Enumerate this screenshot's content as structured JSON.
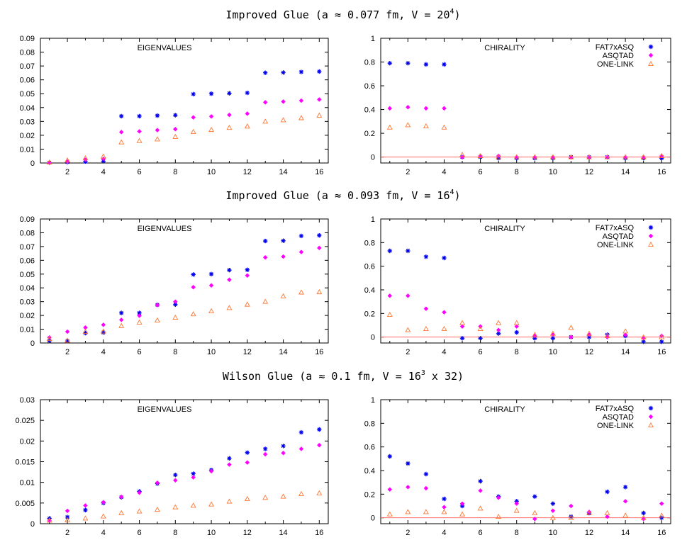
{
  "figure": {
    "sections": [
      {
        "title_main": "Improved Glue (a ≈ 0.077 fm, V = 20",
        "title_sup": "4",
        "title_end": ")"
      },
      {
        "title_main": "Improved Glue (a ≈ 0.093 fm, V = 16",
        "title_sup": "4",
        "title_end": ")"
      },
      {
        "title_main": "Wilson Glue (a ≈ 0.1 fm, V = 16",
        "title_sup": "3",
        "title_end": " x 32)"
      }
    ]
  },
  "colors": {
    "FAT7xASQ": "#0000ee",
    "ASQTAD": "#ff00ff",
    "ONE-LINK": "#ff7733",
    "zero_line": "#ff6666"
  },
  "chart_data": [
    {
      "type": "scatter",
      "title": "EIGENVALUES",
      "xlim": [
        0.5,
        16.5
      ],
      "ylim": [
        0,
        0.09
      ],
      "xticks": [
        "2",
        "4",
        "6",
        "8",
        "10",
        "12",
        "14",
        "16"
      ],
      "yticks": [
        "0",
        "0.01",
        "0.02",
        "0.03",
        "0.04",
        "0.05",
        "0.06",
        "0.07",
        "0.08",
        "0.09"
      ],
      "x": [
        1,
        2,
        3,
        4,
        5,
        6,
        7,
        8,
        9,
        10,
        11,
        12,
        13,
        14,
        15,
        16
      ],
      "series": [
        {
          "name": "FAT7xASQ",
          "marker": "asterisk",
          "values": [
            0.0003,
            0.0006,
            0.0011,
            0.0013,
            0.0338,
            0.0338,
            0.0342,
            0.0345,
            0.0497,
            0.05,
            0.0503,
            0.0506,
            0.0651,
            0.0653,
            0.0657,
            0.066
          ]
        },
        {
          "name": "ASQTAD",
          "marker": "diamond",
          "values": [
            0.0003,
            0.001,
            0.0024,
            0.003,
            0.0223,
            0.0228,
            0.0237,
            0.0244,
            0.0329,
            0.0336,
            0.0347,
            0.0356,
            0.0438,
            0.0443,
            0.045,
            0.0458
          ]
        },
        {
          "name": "ONE-LINK",
          "marker": "triangle",
          "values": [
            0.0005,
            0.002,
            0.0035,
            0.0048,
            0.015,
            0.016,
            0.0172,
            0.019,
            0.0225,
            0.024,
            0.0255,
            0.0265,
            0.03,
            0.031,
            0.0325,
            0.0343
          ]
        }
      ]
    },
    {
      "type": "scatter",
      "title": "CHIRALITY",
      "xlim": [
        0.5,
        16.5
      ],
      "ylim": [
        -0.05,
        1
      ],
      "xticks": [
        "2",
        "4",
        "6",
        "8",
        "10",
        "12",
        "14",
        "16"
      ],
      "yticks": [
        "0",
        "0.2",
        "0.4",
        "0.6",
        "0.8",
        "1"
      ],
      "legend": [
        "FAT7xASQ",
        "ASQTAD",
        "ONE-LINK"
      ],
      "x": [
        1,
        2,
        3,
        4,
        5,
        6,
        7,
        8,
        9,
        10,
        11,
        12,
        13,
        14,
        15,
        16
      ],
      "series": [
        {
          "name": "FAT7xASQ",
          "marker": "asterisk",
          "values": [
            0.79,
            0.79,
            0.78,
            0.78,
            0.0,
            0.0,
            -0.01,
            -0.01,
            -0.01,
            -0.01,
            0.0,
            0.0,
            0.0,
            -0.01,
            -0.01,
            -0.01
          ]
        },
        {
          "name": "ASQTAD",
          "marker": "diamond",
          "values": [
            0.41,
            0.42,
            0.41,
            0.41,
            0.0,
            0.01,
            0.01,
            0.0,
            0.0,
            0.0,
            0.0,
            0.0,
            0.0,
            0.0,
            0.0,
            0.01
          ]
        },
        {
          "name": "ONE-LINK",
          "marker": "triangle",
          "values": [
            0.25,
            0.27,
            0.26,
            0.25,
            0.02,
            0.01,
            0.0,
            0.0,
            0.0,
            0.0,
            0.0,
            0.0,
            0.0,
            0.0,
            0.0,
            0.01
          ]
        }
      ]
    },
    {
      "type": "scatter",
      "title": "EIGENVALUES",
      "xlim": [
        0.5,
        16.5
      ],
      "ylim": [
        0,
        0.09
      ],
      "xticks": [
        "2",
        "4",
        "6",
        "8",
        "10",
        "12",
        "14",
        "16"
      ],
      "yticks": [
        "0",
        "0.01",
        "0.02",
        "0.03",
        "0.04",
        "0.05",
        "0.06",
        "0.07",
        "0.08",
        "0.09"
      ],
      "x": [
        1,
        2,
        3,
        4,
        5,
        6,
        7,
        8,
        9,
        10,
        11,
        12,
        13,
        14,
        15,
        16
      ],
      "series": [
        {
          "name": "FAT7xASQ",
          "marker": "asterisk",
          "values": [
            0.0015,
            0.0015,
            0.0072,
            0.0076,
            0.0218,
            0.0218,
            0.0277,
            0.0279,
            0.0497,
            0.05,
            0.0529,
            0.0531,
            0.074,
            0.0742,
            0.0777,
            0.0781
          ]
        },
        {
          "name": "ASQTAD",
          "marker": "diamond",
          "values": [
            0.004,
            0.0082,
            0.0112,
            0.0132,
            0.0168,
            0.0198,
            0.0275,
            0.03,
            0.0405,
            0.0418,
            0.0459,
            0.049,
            0.0621,
            0.0627,
            0.066,
            0.069
          ]
        },
        {
          "name": "ONE-LINK",
          "marker": "triangle",
          "values": [
            0.003,
            0.0018,
            0.0082,
            0.0085,
            0.0125,
            0.015,
            0.0165,
            0.0185,
            0.021,
            0.0232,
            0.0255,
            0.028,
            0.03,
            0.034,
            0.0368,
            0.037
          ]
        }
      ]
    },
    {
      "type": "scatter",
      "title": "CHIRALITY",
      "xlim": [
        0.5,
        16.5
      ],
      "ylim": [
        -0.05,
        1
      ],
      "xticks": [
        "2",
        "4",
        "6",
        "8",
        "10",
        "12",
        "14",
        "16"
      ],
      "yticks": [
        "0",
        "0.2",
        "0.4",
        "0.6",
        "0.8",
        "1"
      ],
      "legend": [
        "FAT7xASQ",
        "ASQTAD",
        "ONE-LINK"
      ],
      "x": [
        1,
        2,
        3,
        4,
        5,
        6,
        7,
        8,
        9,
        10,
        11,
        12,
        13,
        14,
        15,
        16
      ],
      "series": [
        {
          "name": "FAT7xASQ",
          "marker": "asterisk",
          "values": [
            0.73,
            0.73,
            0.68,
            0.67,
            -0.01,
            -0.01,
            0.03,
            0.04,
            -0.01,
            -0.01,
            0.0,
            0.0,
            0.02,
            0.01,
            -0.04,
            -0.04
          ]
        },
        {
          "name": "ASQTAD",
          "marker": "diamond",
          "values": [
            0.35,
            0.35,
            0.24,
            0.21,
            0.09,
            0.09,
            0.06,
            0.09,
            0.01,
            0.02,
            0.0,
            0.02,
            0.0,
            0.02,
            -0.01,
            0.01
          ]
        },
        {
          "name": "ONE-LINK",
          "marker": "triangle",
          "values": [
            0.19,
            0.06,
            0.07,
            0.07,
            0.12,
            0.07,
            0.12,
            0.12,
            0.02,
            0.03,
            0.08,
            0.03,
            0.01,
            0.05,
            0.0,
            0.0
          ]
        }
      ]
    },
    {
      "type": "scatter",
      "title": "EIGENVALUES",
      "xlim": [
        0.5,
        16.5
      ],
      "ylim": [
        0,
        0.03
      ],
      "xticks": [
        "2",
        "4",
        "6",
        "8",
        "10",
        "12",
        "14",
        "16"
      ],
      "yticks": [
        "0",
        "0.005",
        "0.01",
        "0.015",
        "0.02",
        "0.025",
        "0.03"
      ],
      "x": [
        1,
        2,
        3,
        4,
        5,
        6,
        7,
        8,
        9,
        10,
        11,
        12,
        13,
        14,
        15,
        16
      ],
      "series": [
        {
          "name": "FAT7xASQ",
          "marker": "asterisk",
          "values": [
            0.0013,
            0.0016,
            0.0033,
            0.005,
            0.0064,
            0.0078,
            0.0097,
            0.0118,
            0.0121,
            0.013,
            0.0158,
            0.0172,
            0.0181,
            0.0188,
            0.0221,
            0.0228
          ]
        },
        {
          "name": "ASQTAD",
          "marker": "diamond",
          "values": [
            0.0008,
            0.0031,
            0.0044,
            0.0052,
            0.0065,
            0.0075,
            0.0099,
            0.0105,
            0.0112,
            0.0127,
            0.0143,
            0.0148,
            0.0168,
            0.0171,
            0.0181,
            0.019
          ]
        },
        {
          "name": "ONE-LINK",
          "marker": "triangle",
          "values": [
            0.0008,
            0.0009,
            0.0013,
            0.0018,
            0.0026,
            0.003,
            0.0034,
            0.004,
            0.0044,
            0.0047,
            0.0054,
            0.006,
            0.0063,
            0.0066,
            0.0072,
            0.0074
          ]
        }
      ]
    },
    {
      "type": "scatter",
      "title": "CHIRALITY",
      "xlim": [
        0.5,
        16.5
      ],
      "ylim": [
        -0.05,
        1
      ],
      "xticks": [
        "2",
        "4",
        "6",
        "8",
        "10",
        "12",
        "14",
        "16"
      ],
      "yticks": [
        "0",
        "0.2",
        "0.4",
        "0.6",
        "0.8",
        "1"
      ],
      "legend": [
        "FAT7xASQ",
        "ASQTAD",
        "ONE-LINK"
      ],
      "x": [
        1,
        2,
        3,
        4,
        5,
        6,
        7,
        8,
        9,
        10,
        11,
        12,
        13,
        14,
        15,
        16
      ],
      "series": [
        {
          "name": "FAT7xASQ",
          "marker": "asterisk",
          "values": [
            0.52,
            0.46,
            0.37,
            0.16,
            0.1,
            0.31,
            0.18,
            0.14,
            0.18,
            0.12,
            0.01,
            0.04,
            0.22,
            0.26,
            0.04,
            0.0
          ]
        },
        {
          "name": "ASQTAD",
          "marker": "diamond",
          "values": [
            0.24,
            0.26,
            0.25,
            0.09,
            0.12,
            0.23,
            0.17,
            0.12,
            -0.01,
            0.06,
            0.1,
            0.05,
            0.01,
            0.14,
            -0.01,
            0.12
          ]
        },
        {
          "name": "ONE-LINK",
          "marker": "triangle",
          "values": [
            0.03,
            0.05,
            0.05,
            0.05,
            0.03,
            0.08,
            0.01,
            0.06,
            0.04,
            0.0,
            0.0,
            0.04,
            0.04,
            0.02,
            0.0,
            0.02
          ]
        }
      ]
    }
  ]
}
